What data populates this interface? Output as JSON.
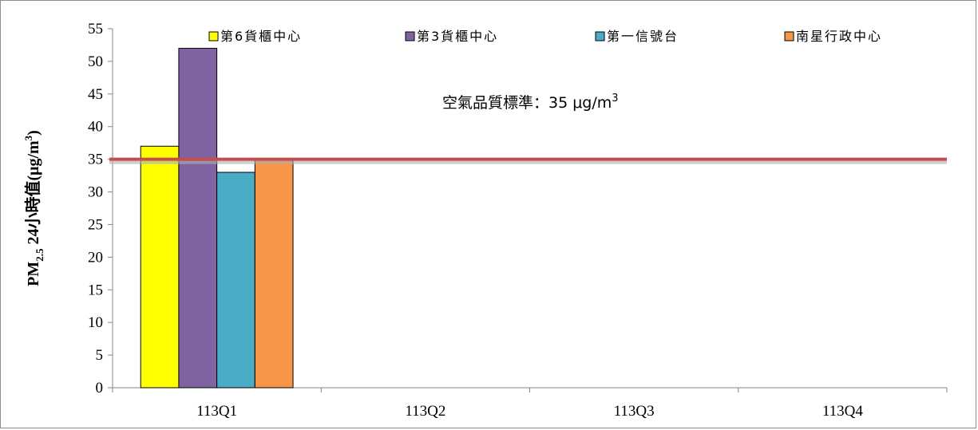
{
  "chart_data": {
    "type": "bar",
    "categories": [
      "113Q1",
      "113Q2",
      "113Q3",
      "113Q4"
    ],
    "series": [
      {
        "name": "第6貨櫃中心",
        "values": [
          37,
          null,
          null,
          null
        ],
        "color": "#FFFF00"
      },
      {
        "name": "第3貨櫃中心",
        "values": [
          52,
          null,
          null,
          null
        ],
        "color": "#8064A2"
      },
      {
        "name": "第一信號台",
        "values": [
          33,
          null,
          null,
          null
        ],
        "color": "#4BACC6"
      },
      {
        "name": "南星行政中心",
        "values": [
          35,
          null,
          null,
          null
        ],
        "color": "#F79646"
      }
    ],
    "ylabel": "PM2.5 24小時值(μg/m3)",
    "ylabel_parts": {
      "pre": "PM",
      "sub": "2.5",
      "mid": " 24小時值(μg/m",
      "sup": "3",
      "post": ")"
    },
    "ylim": [
      0,
      55
    ],
    "yticks": [
      0,
      5,
      10,
      15,
      20,
      25,
      30,
      35,
      40,
      45,
      50,
      55
    ],
    "grid": false,
    "legend_position": "top",
    "reference_line": {
      "value": 35,
      "color": "#C0504D"
    },
    "annotation": {
      "text": "空氣品質標準：35 μg/m",
      "sup": "3"
    }
  }
}
